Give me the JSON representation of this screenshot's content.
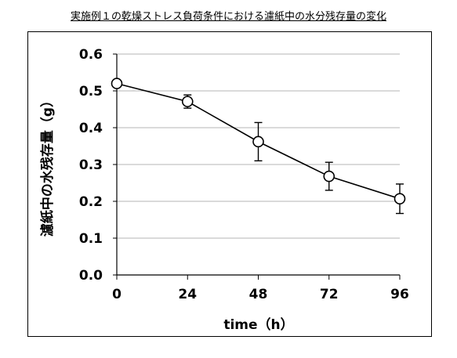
{
  "chart_data": {
    "type": "line",
    "title": "実施例１の乾燥ストレス負荷条件における濾紙中の水分残存量の変化",
    "xlabel": "time（h）",
    "ylabel": "濾紙中の水残存量（g）",
    "x": [
      0,
      24,
      48,
      72,
      96
    ],
    "xticks": [
      "0",
      "24",
      "48",
      "72",
      "96"
    ],
    "yticks": [
      "0.0",
      "0.1",
      "0.2",
      "0.3",
      "0.4",
      "0.5",
      "0.6"
    ],
    "xlim": [
      0,
      96
    ],
    "ylim": [
      0,
      0.6
    ],
    "grid": "horizontal",
    "series": [
      {
        "values": [
          0.52,
          0.471,
          0.362,
          0.268,
          0.207
        ],
        "error": [
          0,
          0.018,
          0.052,
          0.038,
          0.04
        ],
        "color": "#000000",
        "marker": "open-circle"
      }
    ]
  }
}
